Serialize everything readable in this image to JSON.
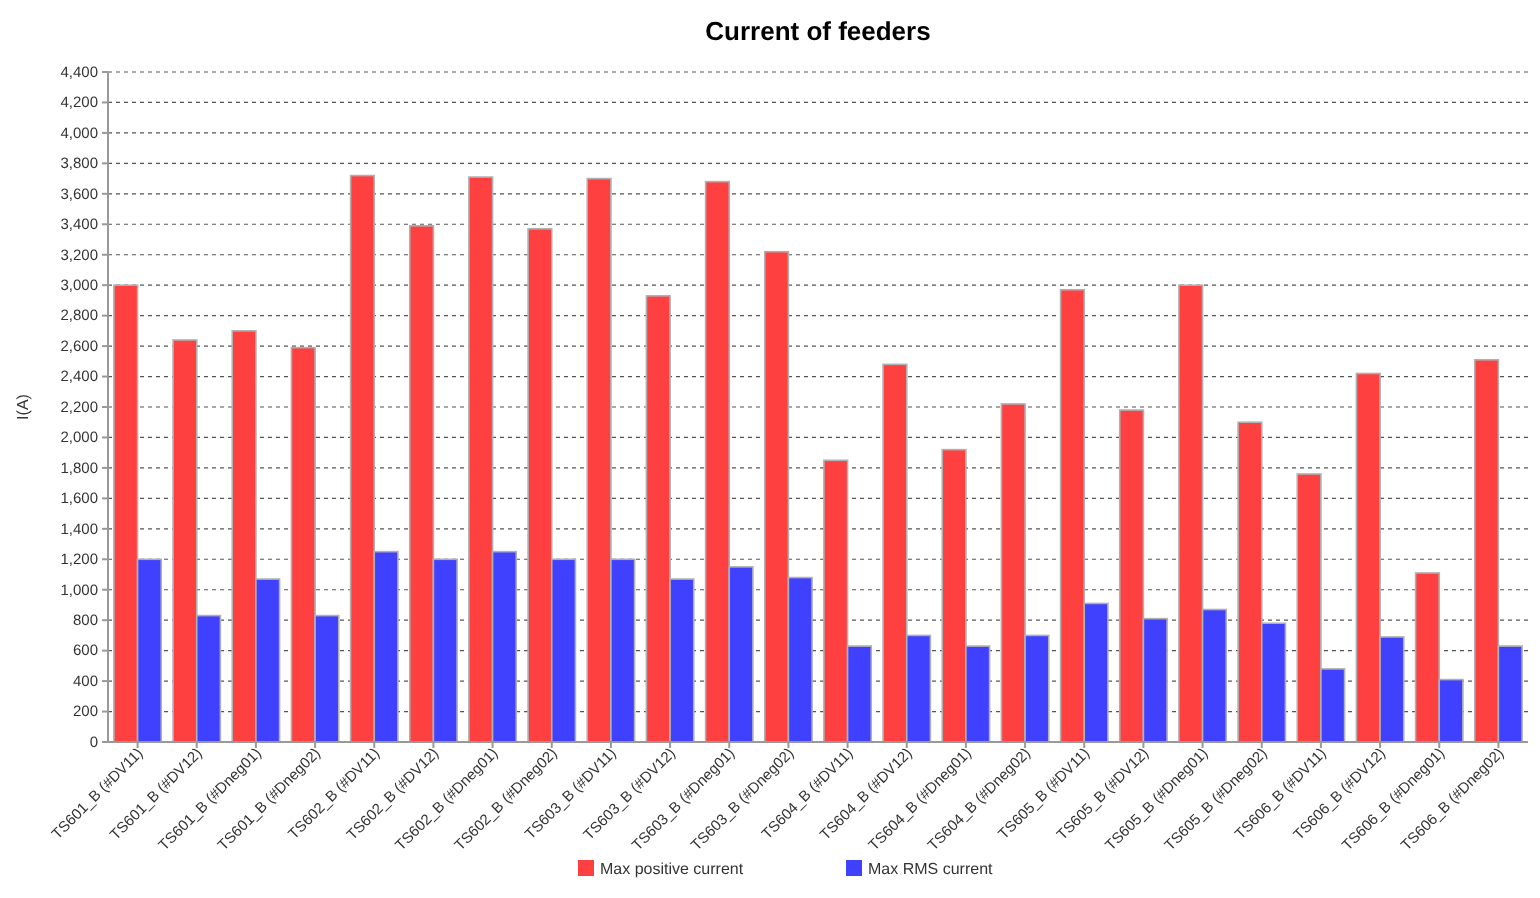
{
  "chart_data": {
    "type": "bar",
    "title": "Current of feeders",
    "ylabel": "I(A)",
    "categories": [
      "TS601_B (#DV11)",
      "TS601_B (#DV12)",
      "TS601_B (#Dneg01)",
      "TS601_B (#Dneg02)",
      "TS602_B (#DV11)",
      "TS602_B (#DV12)",
      "TS602_B (#Dneg01)",
      "TS602_B (#Dneg02)",
      "TS603_B (#DV11)",
      "TS603_B (#DV12)",
      "TS603_B (#Dneg01)",
      "TS603_B (#Dneg02)",
      "TS604_B (#DV11)",
      "TS604_B (#DV12)",
      "TS604_B (#Dneg01)",
      "TS604_B (#Dneg02)",
      "TS605_B (#DV11)",
      "TS605_B (#DV12)",
      "TS605_B (#Dneg01)",
      "TS605_B (#Dneg02)",
      "TS606_B (#DV11)",
      "TS606_B (#DV12)",
      "TS606_B (#Dneg01)",
      "TS606_B (#Dneg02)"
    ],
    "series": [
      {
        "name": "Max positive current",
        "color": "#ff4040",
        "values": [
          3000,
          2640,
          2700,
          2590,
          3720,
          3390,
          3710,
          3370,
          3700,
          2930,
          3680,
          3220,
          1850,
          2480,
          1920,
          2220,
          2970,
          2180,
          3000,
          2100,
          1760,
          2420,
          1110,
          2510
        ]
      },
      {
        "name": "Max RMS current",
        "color": "#4040ff",
        "values": [
          1200,
          830,
          1070,
          830,
          1250,
          1200,
          1250,
          1200,
          1200,
          1070,
          1150,
          1080,
          630,
          700,
          630,
          700,
          910,
          810,
          870,
          780,
          480,
          690,
          410,
          630
        ]
      }
    ],
    "ylim": [
      0,
      4400
    ],
    "yticks": [
      {
        "value": 0,
        "label": "0"
      },
      {
        "value": 200,
        "label": "200"
      },
      {
        "value": 400,
        "label": "400"
      },
      {
        "value": 600,
        "label": "600"
      },
      {
        "value": 800,
        "label": "800"
      },
      {
        "value": 1000,
        "label": "1,000"
      },
      {
        "value": 1200,
        "label": "1,200"
      },
      {
        "value": 1400,
        "label": "1,400"
      },
      {
        "value": 1600,
        "label": "1,600"
      },
      {
        "value": 1800,
        "label": "1,800"
      },
      {
        "value": 2000,
        "label": "2,000"
      },
      {
        "value": 2200,
        "label": "2,200"
      },
      {
        "value": 2400,
        "label": "2,400"
      },
      {
        "value": 2600,
        "label": "2,600"
      },
      {
        "value": 2800,
        "label": "2,800"
      },
      {
        "value": 3000,
        "label": "3,000"
      },
      {
        "value": 3200,
        "label": "3,200"
      },
      {
        "value": 3400,
        "label": "3,400"
      },
      {
        "value": 3600,
        "label": "3,600"
      },
      {
        "value": 3800,
        "label": "3,800"
      },
      {
        "value": 4000,
        "label": "4,000"
      },
      {
        "value": 4200,
        "label": "4,200"
      },
      {
        "value": 4400,
        "label": "4,400"
      }
    ],
    "grid": "y",
    "legend": "bottom"
  }
}
